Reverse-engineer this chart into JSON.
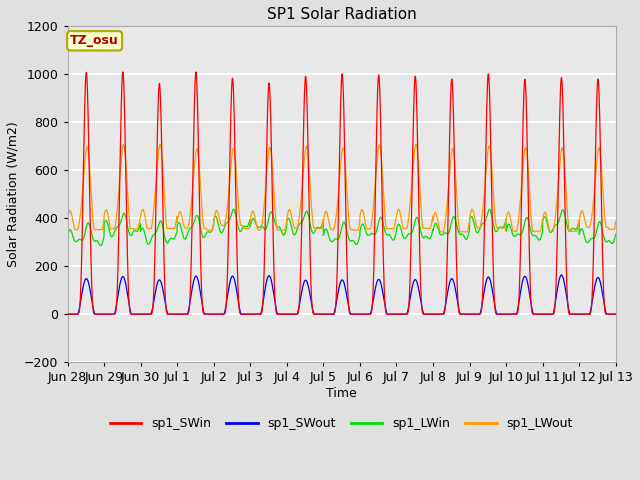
{
  "title": "SP1 Solar Radiation",
  "ylabel": "Solar Radiation (W/m2)",
  "xlabel": "Time",
  "ylim": [
    -200,
    1200
  ],
  "x_tick_labels": [
    "Jun 28",
    "Jun 29",
    "Jun 30",
    "Jul 1",
    "Jul 2",
    "Jul 3",
    "Jul 4",
    "Jul 5",
    "Jul 6",
    "Jul 7",
    "Jul 8",
    "Jul 9",
    "Jul 10",
    "Jul 11",
    "Jul 12",
    "Jul 13"
  ],
  "fig_bg_color": "#e0e0e0",
  "plot_bg_color": "#e8e8e8",
  "grid_color": "#ffffff",
  "annotation_text": "TZ_osu",
  "annotation_bg": "#ffffcc",
  "annotation_border": "#aaa800",
  "annotation_text_color": "#aa0000",
  "colors": {
    "SWin": "#ff0000",
    "SWout": "#0000ee",
    "LWin": "#00dd00",
    "LWout": "#ff9900"
  },
  "legend_labels": [
    "sp1_SWin",
    "sp1_SWout",
    "sp1_LWin",
    "sp1_LWout"
  ],
  "num_days": 15,
  "points_per_day": 480,
  "yticks": [
    -200,
    0,
    200,
    400,
    600,
    800,
    1000,
    1200
  ]
}
